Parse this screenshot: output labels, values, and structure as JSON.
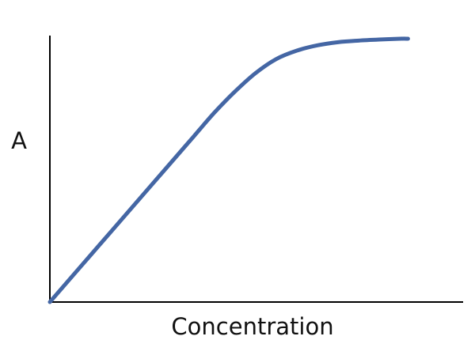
{
  "chart_data": {
    "type": "line",
    "xlabel": "Concentration",
    "ylabel": "A",
    "xlim": [
      0,
      1
    ],
    "ylim": [
      0,
      1
    ],
    "grid": false,
    "ticks": false,
    "series": [
      {
        "color": "#4466a4",
        "x": [
          0,
          0.05,
          0.1,
          0.15,
          0.2,
          0.25,
          0.3,
          0.35,
          0.4,
          0.45,
          0.5,
          0.55,
          0.6,
          0.65,
          0.7,
          0.75,
          0.8,
          0.85,
          0.87
        ],
        "y": [
          0,
          0.09,
          0.18,
          0.27,
          0.36,
          0.45,
          0.54,
          0.63,
          0.72,
          0.8,
          0.87,
          0.923,
          0.955,
          0.975,
          0.987,
          0.993,
          0.997,
          1.0,
          1.0
        ]
      }
    ]
  },
  "colors": {
    "axis": "#000000",
    "line": "#4466a4",
    "background": "#ffffff"
  }
}
